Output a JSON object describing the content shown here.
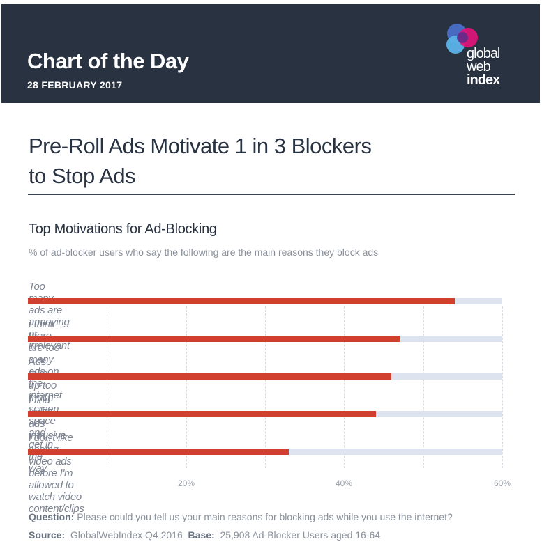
{
  "header": {
    "title": "Chart of the Day",
    "date": "28 FEBRUARY  2017",
    "logo": {
      "line1": "global",
      "line2": "web",
      "line3": "index"
    },
    "background_color": "#283241"
  },
  "headline": {
    "line1": "Pre-Roll Ads Motivate 1 in 3 Blockers",
    "line2": "to Stop Ads"
  },
  "chart": {
    "title": "Top Motivations for Ad-Blocking",
    "subtitle": "% of ad-blocker users who say the following are the main reasons they block ads",
    "bars": [
      {
        "label": "Too many ads are annoying or irrelevant",
        "value": 54
      },
      {
        "label": "I think there are too many ads on the internet",
        "value": 47
      },
      {
        "label": "Ads take up too much screen space and get in the way",
        "value": 46
      },
      {
        "label": "I find online ads intrusive",
        "value": 44
      },
      {
        "label": "I don't like seeing video ads before I'm allowed to watch video content/clips",
        "value": 33
      }
    ],
    "ticks": [
      "20%",
      "40%",
      "60%"
    ],
    "bar_color": "#d13f2e",
    "track_color": "#dde3ef"
  },
  "footer": {
    "question_label": "Question:",
    "question_text": " Please could you tell us your main reasons for blocking ads while you use the internet?",
    "source_label": "Source:",
    "source_text": "  GlobalWebIndex Q4 2016  ",
    "base_label": "Base:",
    "base_text": "  25,908 Ad-Blocker Users aged 16-64"
  },
  "chart_data": {
    "type": "bar",
    "orientation": "horizontal",
    "title": "Top Motivations for Ad-Blocking",
    "subtitle": "% of ad-blocker users who say the following are the main reasons they block ads",
    "categories": [
      "Too many ads are annoying or irrelevant",
      "I think there are too many ads on the internet",
      "Ads take up too much screen space and get in the way",
      "I find online ads intrusive",
      "I don't like seeing video ads before I'm allowed to watch video content/clips"
    ],
    "values": [
      54,
      47,
      46,
      44,
      33
    ],
    "xlabel": "",
    "ylabel": "",
    "xlim": [
      0,
      60
    ],
    "tick_labels": [
      "20%",
      "40%",
      "60%"
    ],
    "grid": "dashed vertical every 10%",
    "legend": "none"
  }
}
